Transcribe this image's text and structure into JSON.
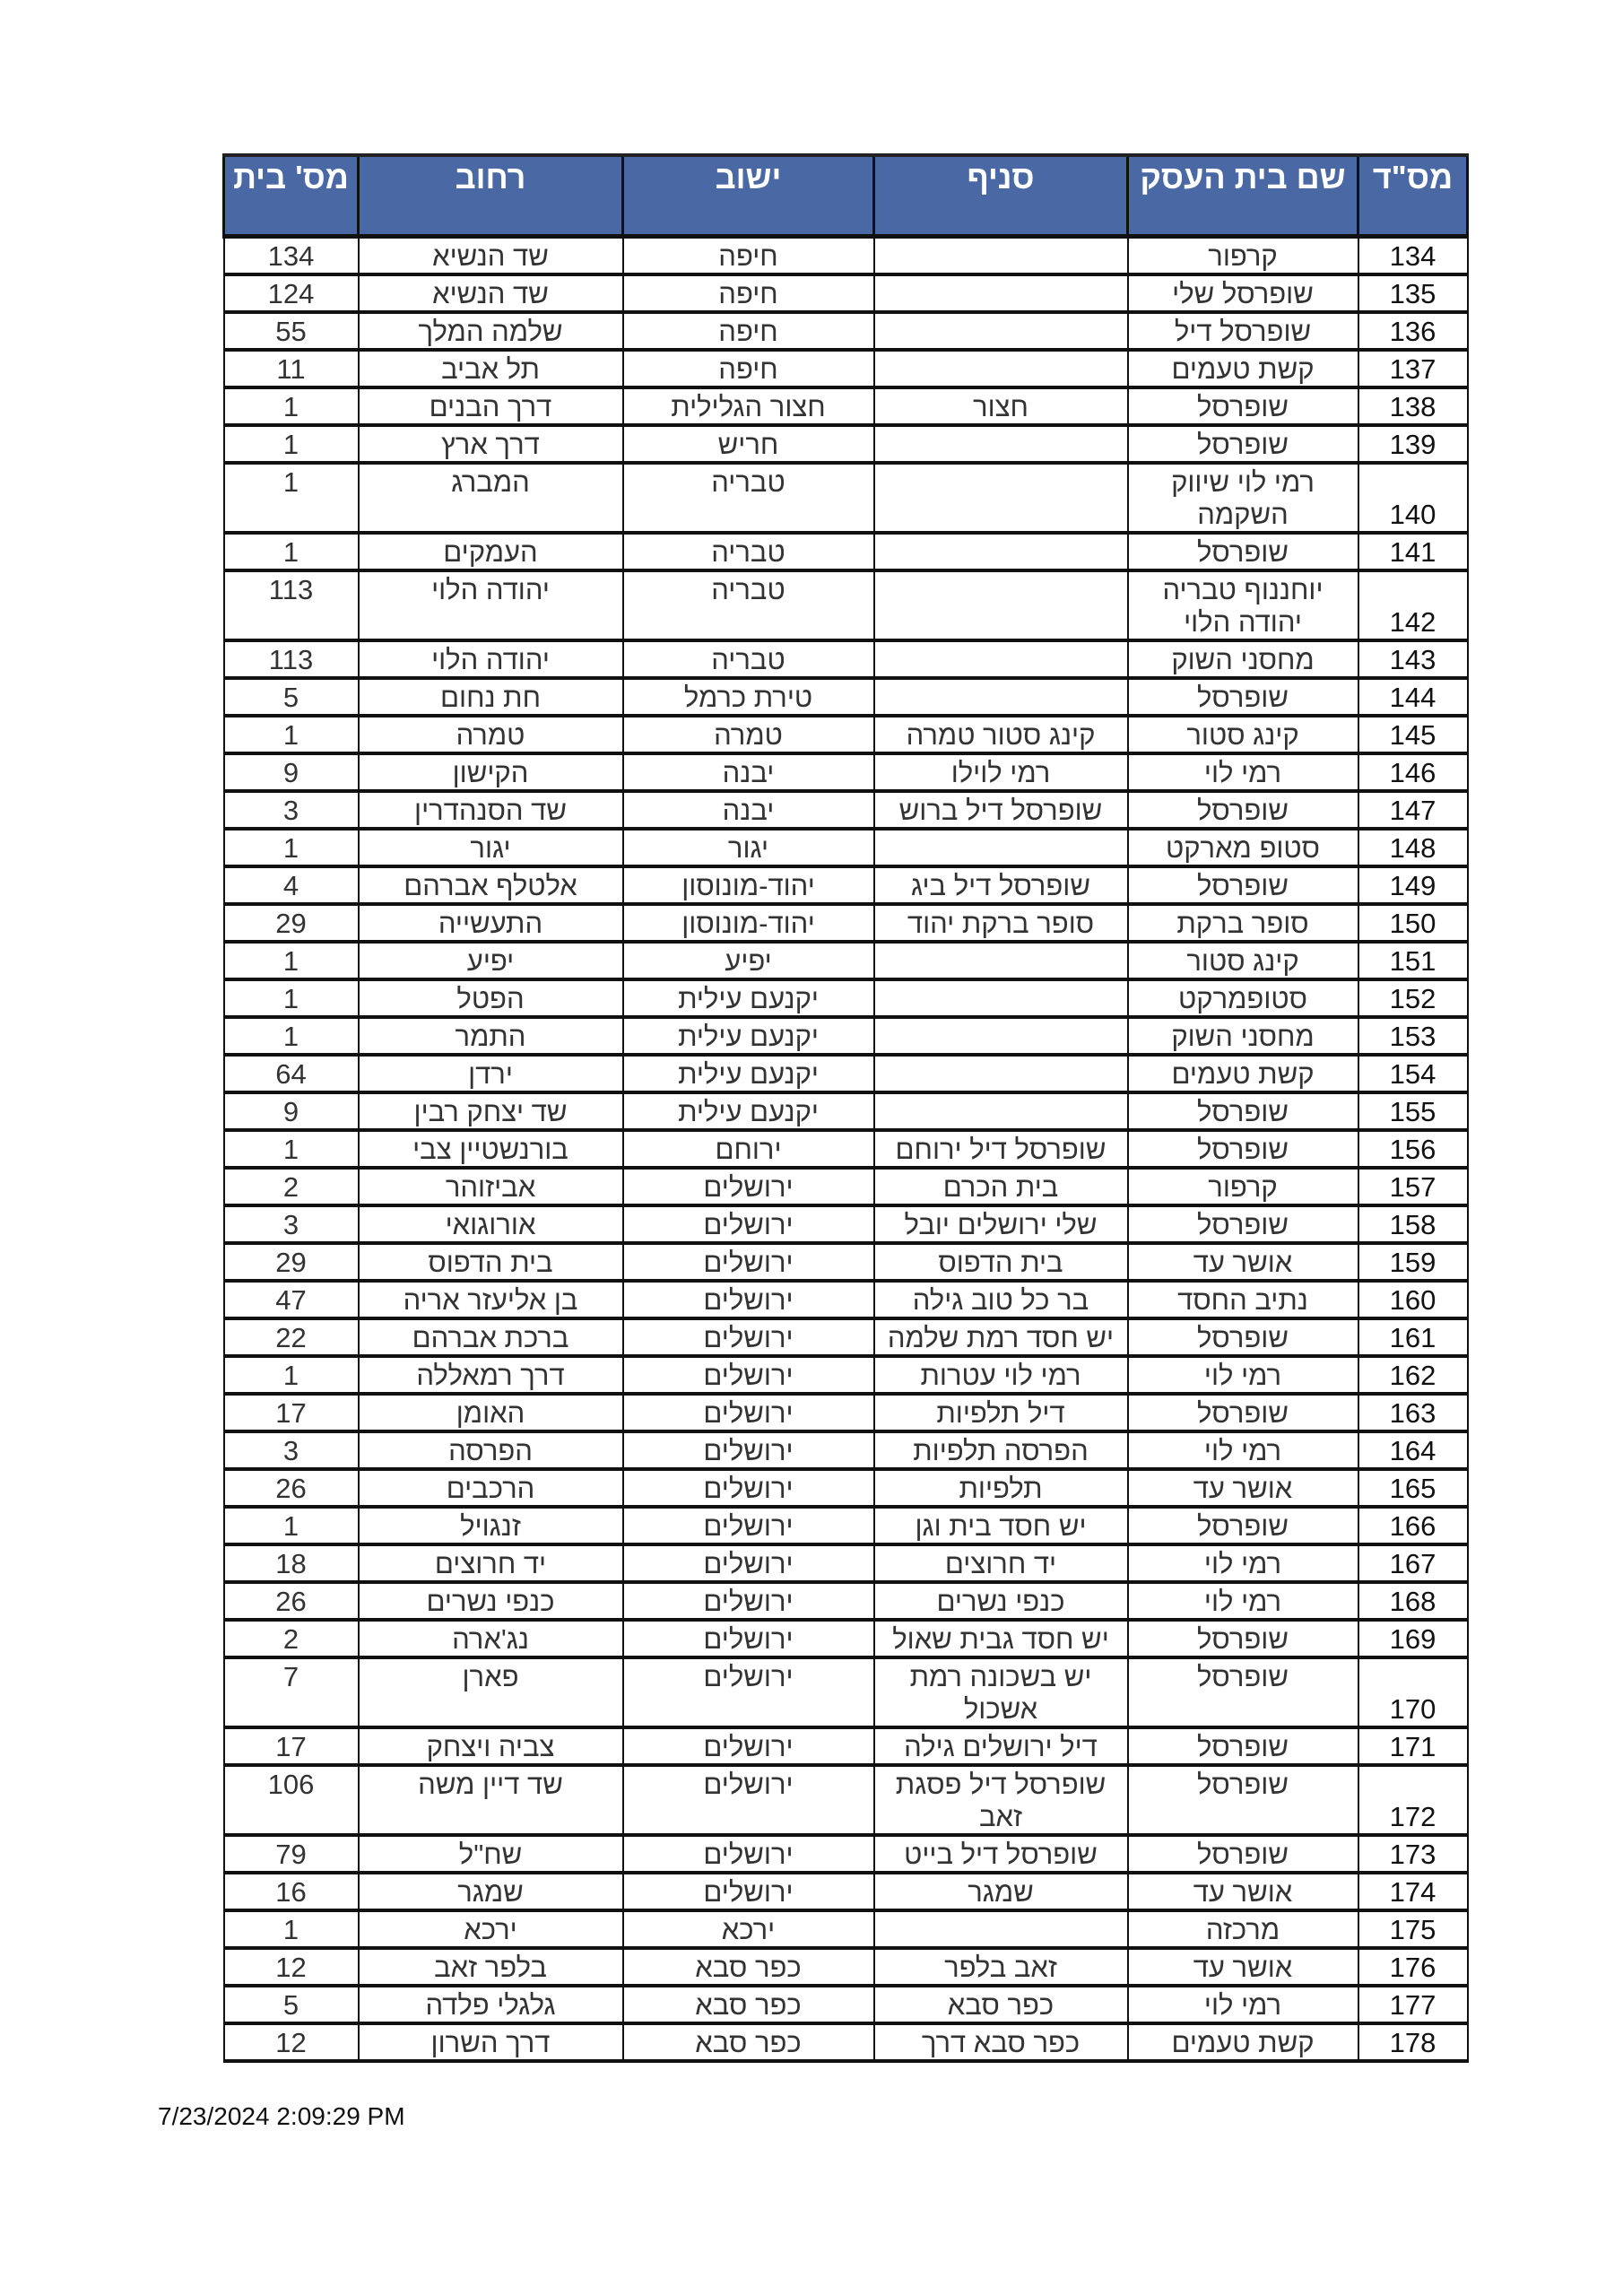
{
  "table": {
    "header_color": "#4a68a4",
    "columns": [
      "מס\"ד",
      "שם בית העסק",
      "סניף",
      "ישוב",
      "רחוב",
      "מס' בית"
    ],
    "rows": [
      [
        "134",
        "קרפור",
        "",
        "חיפה",
        "שד הנשיא",
        "134"
      ],
      [
        "135",
        "שופרסל שלי",
        "",
        "חיפה",
        "שד הנשיא",
        "124"
      ],
      [
        "136",
        "שופרסל דיל",
        "",
        "חיפה",
        "שלמה המלך",
        "55"
      ],
      [
        "137",
        "קשת טעמים",
        "",
        "חיפה",
        "תל אביב",
        "11"
      ],
      [
        "138",
        "שופרסל",
        "חצור",
        "חצור הגלילית",
        "דרך הבנים",
        "1"
      ],
      [
        "139",
        "שופרסל",
        "",
        "חריש",
        "דרך ארץ",
        "1"
      ],
      [
        "140",
        "רמי לוי שיווק השקמה",
        "",
        "טבריה",
        "המברג",
        "1"
      ],
      [
        "141",
        "שופרסל",
        "",
        "טבריה",
        "העמקים",
        "1"
      ],
      [
        "142",
        "יוחננוף טבריה יהודה הלוי",
        "",
        "טבריה",
        "יהודה הלוי",
        "113"
      ],
      [
        "143",
        "מחסני השוק",
        "",
        "טבריה",
        "יהודה הלוי",
        "113"
      ],
      [
        "144",
        "שופרסל",
        "",
        "טירת כרמל",
        "חת נחום",
        "5"
      ],
      [
        "145",
        "קינג סטור",
        "קינג סטור טמרה",
        "טמרה",
        "טמרה",
        "1"
      ],
      [
        "146",
        "רמי לוי",
        "רמי לוילו",
        "יבנה",
        "הקישון",
        "9"
      ],
      [
        "147",
        "שופרסל",
        "שופרסל דיל ברוש",
        "יבנה",
        "שד הסנהדרין",
        "3"
      ],
      [
        "148",
        "סטופ מארקט",
        "",
        "יגור",
        "יגור",
        "1"
      ],
      [
        "149",
        "שופרסל",
        "שופרסל דיל ביג",
        "יהוד-מונוסון",
        "אלטלף אברהם",
        "4"
      ],
      [
        "150",
        "סופר ברקת",
        "סופר ברקת יהוד",
        "יהוד-מונוסון",
        "התעשייה",
        "29"
      ],
      [
        "151",
        "קינג סטור",
        "",
        "יפיע",
        "יפיע",
        "1"
      ],
      [
        "152",
        "סטופמרקט",
        "",
        "יקנעם עילית",
        "הפטל",
        "1"
      ],
      [
        "153",
        "מחסני השוק",
        "",
        "יקנעם עילית",
        "התמר",
        "1"
      ],
      [
        "154",
        "קשת טעמים",
        "",
        "יקנעם עילית",
        "ירדן",
        "64"
      ],
      [
        "155",
        "שופרסל",
        "",
        "יקנעם עילית",
        "שד יצחק רבין",
        "9"
      ],
      [
        "156",
        "שופרסל",
        "שופרסל דיל ירוחם",
        "ירוחם",
        "בורנשטיין צבי",
        "1"
      ],
      [
        "157",
        "קרפור",
        "בית הכרם",
        "ירושלים",
        "אביזוהר",
        "2"
      ],
      [
        "158",
        "שופרסל",
        "שלי ירושלים יובל",
        "ירושלים",
        "אורוגואי",
        "3"
      ],
      [
        "159",
        "אושר עד",
        "בית הדפוס",
        "ירושלים",
        "בית הדפוס",
        "29"
      ],
      [
        "160",
        "נתיב החסד",
        "בר כל  טוב גילה",
        "ירושלים",
        "בן אליעזר אריה",
        "47"
      ],
      [
        "161",
        "שופרסל",
        "יש חסד רמת שלמה",
        "ירושלים",
        "ברכת אברהם",
        "22"
      ],
      [
        "162",
        "רמי לוי",
        "רמי לוי עטרות",
        "ירושלים",
        "דרך רמאללה",
        "1"
      ],
      [
        "163",
        "שופרסל",
        "דיל תלפיות",
        "ירושלים",
        "האומן",
        "17"
      ],
      [
        "164",
        "רמי לוי",
        "הפרסה תלפיות",
        "ירושלים",
        "הפרסה",
        "3"
      ],
      [
        "165",
        "אושר עד",
        "תלפיות",
        "ירושלים",
        "הרכבים",
        "26"
      ],
      [
        "166",
        "שופרסל",
        "יש חסד בית וגן",
        "ירושלים",
        "זנגויל",
        "1"
      ],
      [
        "167",
        "רמי לוי",
        "יד חרוצים",
        "ירושלים",
        "יד חרוצים",
        "18"
      ],
      [
        "168",
        "רמי לוי",
        "כנפי נשרים",
        "ירושלים",
        "כנפי נשרים",
        "26"
      ],
      [
        "169",
        "שופרסל",
        "יש חסד גבית שאול",
        "ירושלים",
        "נג'ארה",
        "2"
      ],
      [
        "170",
        "שופרסל",
        "יש בשכונה רמת אשכול",
        "ירושלים",
        "פארן",
        "7"
      ],
      [
        "171",
        "שופרסל",
        "דיל ירושלים גילה",
        "ירושלים",
        "צביה ויצחק",
        "17"
      ],
      [
        "172",
        "שופרסל",
        "שופרסל דיל פסגת זאב",
        "ירושלים",
        "שד דיין משה",
        "106"
      ],
      [
        "173",
        "שופרסל",
        "שופרסל דיל בייט",
        "ירושלים",
        "שח\"ל",
        "79"
      ],
      [
        "174",
        "אושר עד",
        "שמגר",
        "ירושלים",
        "שמגר",
        "16"
      ],
      [
        "175",
        "מרכזה",
        "",
        "ירכא",
        "ירכא",
        "1"
      ],
      [
        "176",
        "אושר עד",
        "זאב בלפר",
        "כפר סבא",
        "בלפר זאב",
        "12"
      ],
      [
        "177",
        "רמי לוי",
        "כפר סבא",
        "כפר סבא",
        "גלגלי פלדה",
        "5"
      ],
      [
        "178",
        "קשת טעמים",
        "כפר סבא דרך",
        "כפר סבא",
        "דרך השרון",
        "12"
      ]
    ]
  },
  "footer": {
    "timestamp": "7/23/2024 2:09:29 PM"
  }
}
